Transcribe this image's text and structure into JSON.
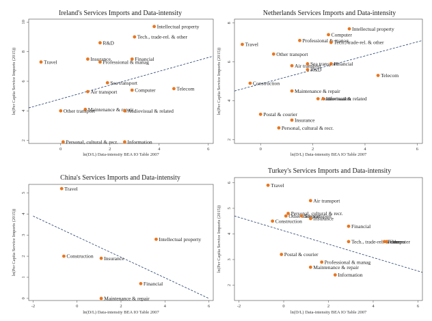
{
  "chart_data": [
    {
      "type": "scatter",
      "title": "Ireland's Services Imports and Data-intensity",
      "xlabel": "ln(D/L) Data-intensity BEA IO Table 2007",
      "ylabel": "ln(Per Capita Service Imports (2015))",
      "xlim": [
        -1.3,
        6.2
      ],
      "ylim": [
        1.8,
        10.2
      ],
      "xticks": [
        -2,
        0,
        2,
        4,
        6
      ],
      "yticks": [
        2,
        4,
        6,
        8,
        10
      ],
      "trend": [
        [
          -1.3,
          4.2
        ],
        [
          6.2,
          7.7
        ]
      ],
      "points": [
        {
          "label": "Intellectual property",
          "x": 3.8,
          "y": 9.7
        },
        {
          "label": "Tech., trade-rel. & other",
          "x": 3.0,
          "y": 9.0
        },
        {
          "label": "R&D",
          "x": 1.6,
          "y": 8.6
        },
        {
          "label": "Travel",
          "x": -0.8,
          "y": 7.3
        },
        {
          "label": "Insurance",
          "x": 1.1,
          "y": 7.5
        },
        {
          "label": "Professional & manag",
          "x": 1.6,
          "y": 7.3
        },
        {
          "label": "Financial",
          "x": 2.9,
          "y": 7.5
        },
        {
          "label": "Sea transport",
          "x": 1.9,
          "y": 5.9
        },
        {
          "label": "Air transport",
          "x": 1.1,
          "y": 5.3
        },
        {
          "label": "Computer",
          "x": 2.9,
          "y": 5.4
        },
        {
          "label": "Telecom",
          "x": 4.6,
          "y": 5.5
        },
        {
          "label": "Maintenance & repair",
          "x": 1.0,
          "y": 4.1
        },
        {
          "label": "Other transport",
          "x": 0.0,
          "y": 4.0
        },
        {
          "label": "Audiovisual & related",
          "x": 2.6,
          "y": 4.0
        },
        {
          "label": "Personal, cultural & recr.",
          "x": 0.1,
          "y": 1.9
        },
        {
          "label": "Information",
          "x": 2.6,
          "y": 1.9
        }
      ]
    },
    {
      "type": "scatter",
      "title": "Netherlands Services Imports and Data-intensity",
      "xlabel": "ln(D/L) Data-intensity BEA IO Table 2007",
      "ylabel": "ln(Per Capita Service Imports (2015))",
      "xlim": [
        -1.0,
        6.2
      ],
      "ylim": [
        1.8,
        8.2
      ],
      "xticks": [
        0,
        2,
        4,
        6
      ],
      "yticks": [
        2,
        4,
        6,
        8
      ],
      "trend": [
        [
          -1.0,
          4.5
        ],
        [
          6.2,
          7.1
        ]
      ],
      "points": [
        {
          "label": "Intellectual property",
          "x": 3.4,
          "y": 7.7
        },
        {
          "label": "Computer",
          "x": 2.6,
          "y": 7.4
        },
        {
          "label": "Professional & manag",
          "x": 1.5,
          "y": 7.1
        },
        {
          "label": "Tech., trade-rel. & other",
          "x": 2.7,
          "y": 7.0
        },
        {
          "label": "Travel",
          "x": -0.7,
          "y": 6.9
        },
        {
          "label": "Other transport",
          "x": 0.5,
          "y": 6.4
        },
        {
          "label": "Sea transport",
          "x": 1.8,
          "y": 5.9
        },
        {
          "label": "Financial",
          "x": 2.7,
          "y": 5.9
        },
        {
          "label": "Air transport",
          "x": 1.2,
          "y": 5.8
        },
        {
          "label": "R&D",
          "x": 1.8,
          "y": 5.6
        },
        {
          "label": "Telecom",
          "x": 4.5,
          "y": 5.3
        },
        {
          "label": "Construction",
          "x": -0.4,
          "y": 4.9
        },
        {
          "label": "Maintenance & repair",
          "x": 1.2,
          "y": 4.5
        },
        {
          "label": "Audiovisual & related",
          "x": 2.2,
          "y": 4.1
        },
        {
          "label": "Information",
          "x": 2.4,
          "y": 4.1
        },
        {
          "label": "Postal & courier",
          "x": 0.0,
          "y": 3.3
        },
        {
          "label": "Insurance",
          "x": 1.2,
          "y": 3.0
        },
        {
          "label": "Personal, cultural & recr.",
          "x": 0.7,
          "y": 2.6
        }
      ]
    },
    {
      "type": "scatter",
      "title": "China's Services Imports and Data-intensity",
      "xlabel": "ln(D/L) Data-intensity BEA IO Table 2007",
      "ylabel": "ln(Per Capita Service Imports (2015))",
      "xlim": [
        -2.2,
        6.2
      ],
      "ylim": [
        -0.1,
        5.4
      ],
      "xticks": [
        -2,
        0,
        2,
        4,
        6
      ],
      "yticks": [
        0,
        1,
        2,
        3,
        4,
        5
      ],
      "trend": [
        [
          -2.0,
          3.9
        ],
        [
          6.0,
          0.0
        ]
      ],
      "points": [
        {
          "label": "Travel",
          "x": -0.7,
          "y": 5.2
        },
        {
          "label": "Intellectual property",
          "x": 3.6,
          "y": 2.8
        },
        {
          "label": "Construction",
          "x": -0.6,
          "y": 2.0
        },
        {
          "label": "Insurance",
          "x": 1.1,
          "y": 1.9
        },
        {
          "label": "Financial",
          "x": 2.9,
          "y": 0.7
        },
        {
          "label": "Maintenance & repair",
          "x": 1.1,
          "y": 0.0
        }
      ]
    },
    {
      "type": "scatter",
      "title": "Turkey's Services Imports and Data-intensity",
      "xlabel": "ln(D/L) Data-intensity BEA IO Table 2007",
      "ylabel": "ln(Per Capita Service Imports (2015))",
      "xlim": [
        -2.2,
        6.2
      ],
      "ylim": [
        1.4,
        6.2
      ],
      "xticks": [
        -2,
        0,
        2,
        4,
        6
      ],
      "yticks": [
        2,
        3,
        4,
        5,
        6
      ],
      "trend": [
        [
          -2.2,
          4.7
        ],
        [
          6.2,
          2.5
        ]
      ],
      "points": [
        {
          "label": "Travel",
          "x": -0.7,
          "y": 5.9
        },
        {
          "label": "Air transport",
          "x": 1.2,
          "y": 5.3
        },
        {
          "label": "Personal, cultural & recr.",
          "x": 0.2,
          "y": 4.8
        },
        {
          "label": "Other transport",
          "x": 0.1,
          "y": 4.7
        },
        {
          "label": "Sea transport",
          "x": 0.8,
          "y": 4.7
        },
        {
          "label": "Insurance",
          "x": 1.2,
          "y": 4.6
        },
        {
          "label": "Construction",
          "x": -0.5,
          "y": 4.5
        },
        {
          "label": "Financial",
          "x": 2.9,
          "y": 4.3
        },
        {
          "label": "Tech., trade-rel. & other",
          "x": 2.9,
          "y": 3.7
        },
        {
          "label": "Telecom",
          "x": 4.5,
          "y": 3.7
        },
        {
          "label": "Computer",
          "x": 4.6,
          "y": 3.7
        },
        {
          "label": "Postal & courier",
          "x": -0.1,
          "y": 3.2
        },
        {
          "label": "Professional & manag",
          "x": 1.7,
          "y": 2.9
        },
        {
          "label": "Maintenance & repair",
          "x": 1.2,
          "y": 2.7
        },
        {
          "label": "Information",
          "x": 2.3,
          "y": 2.4
        }
      ]
    }
  ]
}
